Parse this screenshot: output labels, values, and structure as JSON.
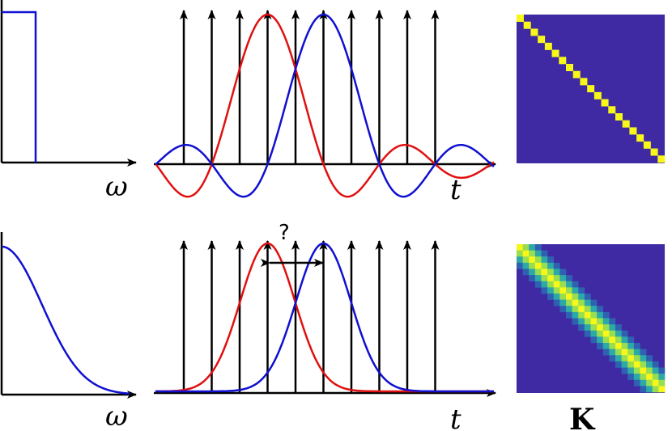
{
  "labels": {
    "omega_top": "ω",
    "omega_bottom": "ω",
    "t_top": "t",
    "t_bottom": "t",
    "question": "?",
    "matrix_label": "K"
  },
  "colors": {
    "axis": "#000000",
    "spectrum": "#1010d0",
    "red": "#e01010",
    "blue": "#1010d0",
    "matrix_bg": "#3f2aa3",
    "matrix_diag": "#f7f71a"
  },
  "rows": [
    {
      "name": "sinc-row",
      "spectrum": "box",
      "kernel": "sinc",
      "matrix": "identity"
    },
    {
      "name": "gauss-row",
      "spectrum": "gaussian-decay",
      "kernel": "gaussian",
      "matrix": "banded"
    }
  ],
  "sample_count": 10
}
